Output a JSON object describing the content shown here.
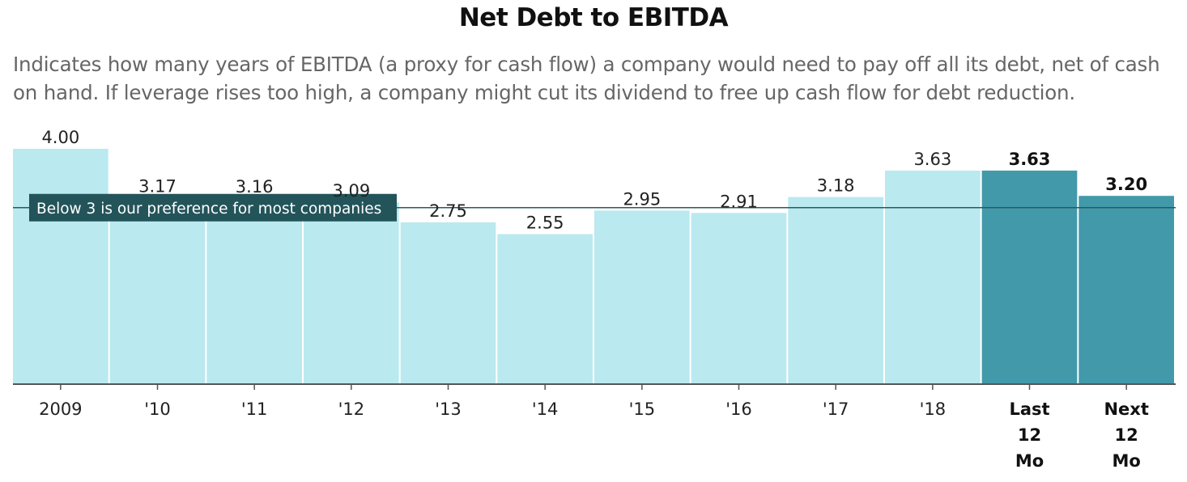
{
  "chart_data": {
    "type": "bar",
    "title": "Net Debt to EBITDA",
    "subtitle": "Indicates how many years of EBITDA (a proxy for cash flow) a company would need to pay off all its debt, net of cash on hand. If leverage rises too high, a company might cut its dividend to free up cash flow for debt reduction.",
    "categories": [
      "2009",
      "'10",
      "'11",
      "'12",
      "'13",
      "'14",
      "'15",
      "'16",
      "'17",
      "'18",
      "Last 12 Mo",
      "Next 12 Mo"
    ],
    "category_lines": [
      [
        "2009"
      ],
      [
        "'10"
      ],
      [
        "'11"
      ],
      [
        "'12"
      ],
      [
        "'13"
      ],
      [
        "'14"
      ],
      [
        "'15"
      ],
      [
        "'16"
      ],
      [
        "'17"
      ],
      [
        "'18"
      ],
      [
        "Last",
        "12",
        "Mo"
      ],
      [
        "Next",
        "12",
        "Mo"
      ]
    ],
    "values": [
      4.0,
      3.17,
      3.16,
      3.09,
      2.75,
      2.55,
      2.95,
      2.91,
      3.18,
      3.63,
      3.63,
      3.2
    ],
    "value_labels": [
      "4.00",
      "3.17",
      "3.16",
      "3.09",
      "2.75",
      "2.55",
      "2.95",
      "2.91",
      "3.18",
      "3.63",
      "3.63",
      "3.20"
    ],
    "highlighted": [
      false,
      false,
      false,
      false,
      false,
      false,
      false,
      false,
      false,
      false,
      true,
      true
    ],
    "ylim": [
      0,
      4
    ],
    "reference_line": {
      "value": 3,
      "label": "Below 3 is our preference for most companies"
    },
    "colors": {
      "bar": "#bae9f0",
      "bar_highlight": "#4299aa",
      "reference_line": "#2a5a5e",
      "reference_label_bg": "#23545a",
      "axis": "#555555",
      "text": "#222222"
    },
    "grid": false,
    "legend": "none"
  }
}
